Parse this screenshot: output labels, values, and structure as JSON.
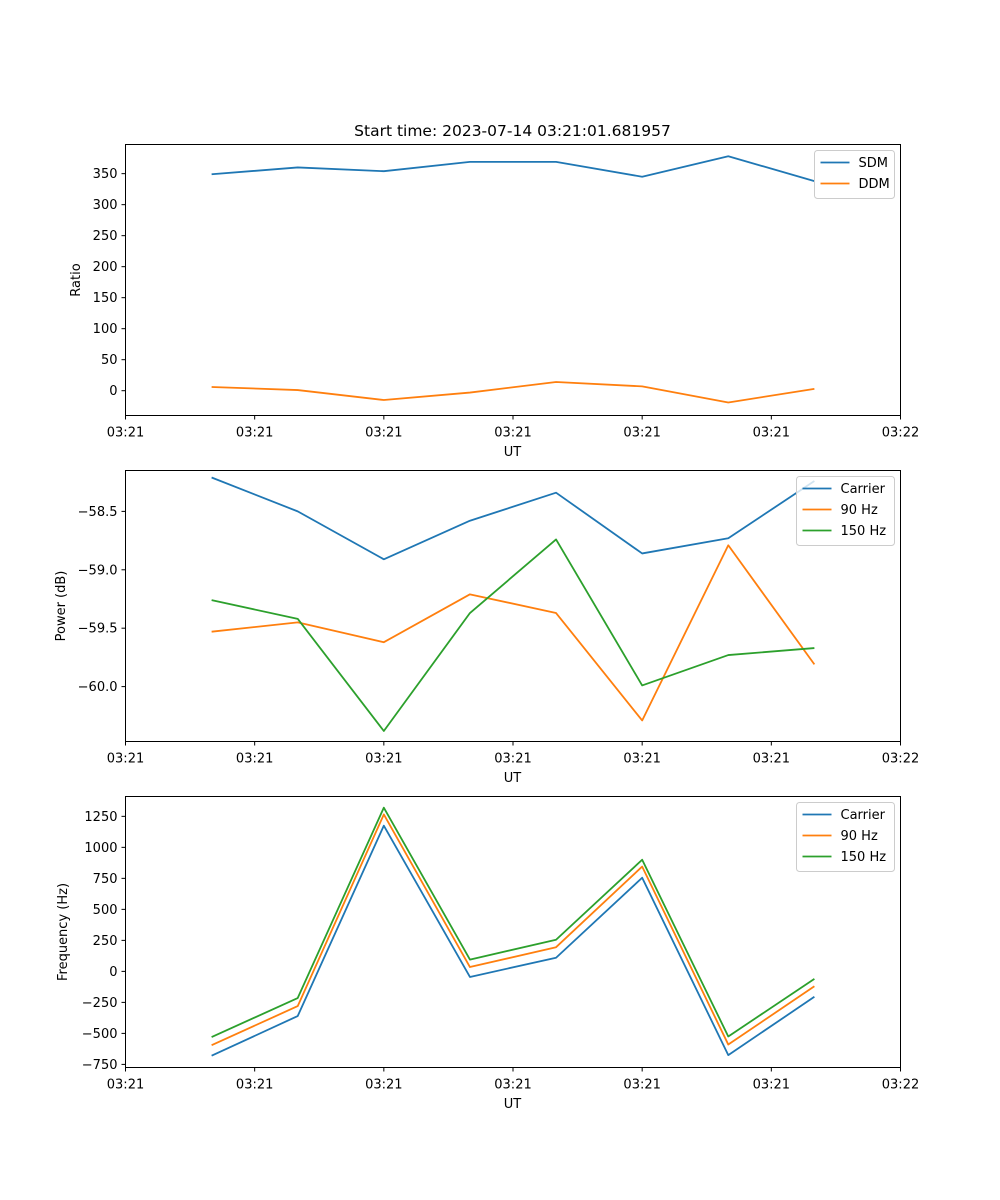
{
  "colors": {
    "c0": "#1f77b4",
    "c1": "#ff7f0e",
    "c2": "#2ca02c"
  },
  "chart_data": [
    {
      "type": "line",
      "title": "Start time: 2023-07-14 03:21:01.681957",
      "xlabel": "UT",
      "ylabel": "Ratio",
      "x": [
        1,
        2,
        3,
        4,
        5,
        6,
        7,
        8
      ],
      "xlim": [
        0,
        9
      ],
      "xticks": [
        0,
        1.5,
        3,
        4.5,
        6,
        7.5,
        9
      ],
      "xtick_labels": [
        "03:21",
        "03:21",
        "03:21",
        "03:21",
        "03:21",
        "03:21",
        "03:22"
      ],
      "ylim": [
        -40,
        397
      ],
      "yticks": [
        0,
        50,
        100,
        150,
        200,
        250,
        300,
        350
      ],
      "ytick_labels": [
        "0",
        "50",
        "100",
        "150",
        "200",
        "250",
        "300",
        "350"
      ],
      "legend_position": "top-right",
      "series": [
        {
          "name": "SDM",
          "color": "#1f77b4",
          "values": [
            349,
            360,
            354,
            369,
            369,
            345,
            378,
            338
          ]
        },
        {
          "name": "DDM",
          "color": "#ff7f0e",
          "values": [
            6,
            1,
            -15,
            -3,
            14,
            7,
            -19,
            3
          ]
        }
      ]
    },
    {
      "type": "line",
      "title": "",
      "xlabel": "UT",
      "ylabel": "Power (dB)",
      "x": [
        1,
        2,
        3,
        4,
        5,
        6,
        7,
        8
      ],
      "xlim": [
        0,
        9
      ],
      "xticks": [
        0,
        1.5,
        3,
        4.5,
        6,
        7.5,
        9
      ],
      "xtick_labels": [
        "03:21",
        "03:21",
        "03:21",
        "03:21",
        "03:21",
        "03:21",
        "03:22"
      ],
      "ylim": [
        -60.47,
        -58.15
      ],
      "yticks": [
        -60.0,
        -59.5,
        -59.0,
        -58.5
      ],
      "ytick_labels": [
        "−60.0",
        "−59.5",
        "−59.0",
        "−58.5"
      ],
      "legend_position": "top-right",
      "series": [
        {
          "name": "Carrier",
          "color": "#1f77b4",
          "values": [
            -58.21,
            -58.5,
            -58.91,
            -58.58,
            -58.34,
            -58.86,
            -58.73,
            -58.24
          ]
        },
        {
          "name": "90 Hz",
          "color": "#ff7f0e",
          "values": [
            -59.53,
            -59.45,
            -59.62,
            -59.21,
            -59.37,
            -60.29,
            -58.79,
            -59.81
          ]
        },
        {
          "name": "150 Hz",
          "color": "#2ca02c",
          "values": [
            -59.26,
            -59.42,
            -60.38,
            -59.37,
            -58.74,
            -59.99,
            -59.73,
            -59.67
          ]
        }
      ]
    },
    {
      "type": "line",
      "title": "",
      "xlabel": "UT",
      "ylabel": "Frequency (Hz)",
      "x": [
        1,
        2,
        3,
        4,
        5,
        6,
        7,
        8
      ],
      "xlim": [
        0,
        9
      ],
      "xticks": [
        0,
        1.5,
        3,
        4.5,
        6,
        7.5,
        9
      ],
      "xtick_labels": [
        "03:21",
        "03:21",
        "03:21",
        "03:21",
        "03:21",
        "03:21",
        "03:22"
      ],
      "ylim": [
        -775,
        1410
      ],
      "yticks": [
        -750,
        -500,
        -250,
        0,
        250,
        500,
        750,
        1000,
        1250
      ],
      "ytick_labels": [
        "−750",
        "−500",
        "−250",
        "0",
        "250",
        "500",
        "750",
        "1000",
        "1250"
      ],
      "legend_position": "top-right",
      "series": [
        {
          "name": "Carrier",
          "color": "#1f77b4",
          "values": [
            -680,
            -360,
            1175,
            -45,
            110,
            755,
            -675,
            -205
          ]
        },
        {
          "name": "90 Hz",
          "color": "#ff7f0e",
          "values": [
            -595,
            -280,
            1265,
            35,
            195,
            845,
            -590,
            -120
          ]
        },
        {
          "name": "150 Hz",
          "color": "#2ca02c",
          "values": [
            -530,
            -215,
            1320,
            95,
            255,
            900,
            -525,
            -60
          ]
        }
      ]
    }
  ]
}
